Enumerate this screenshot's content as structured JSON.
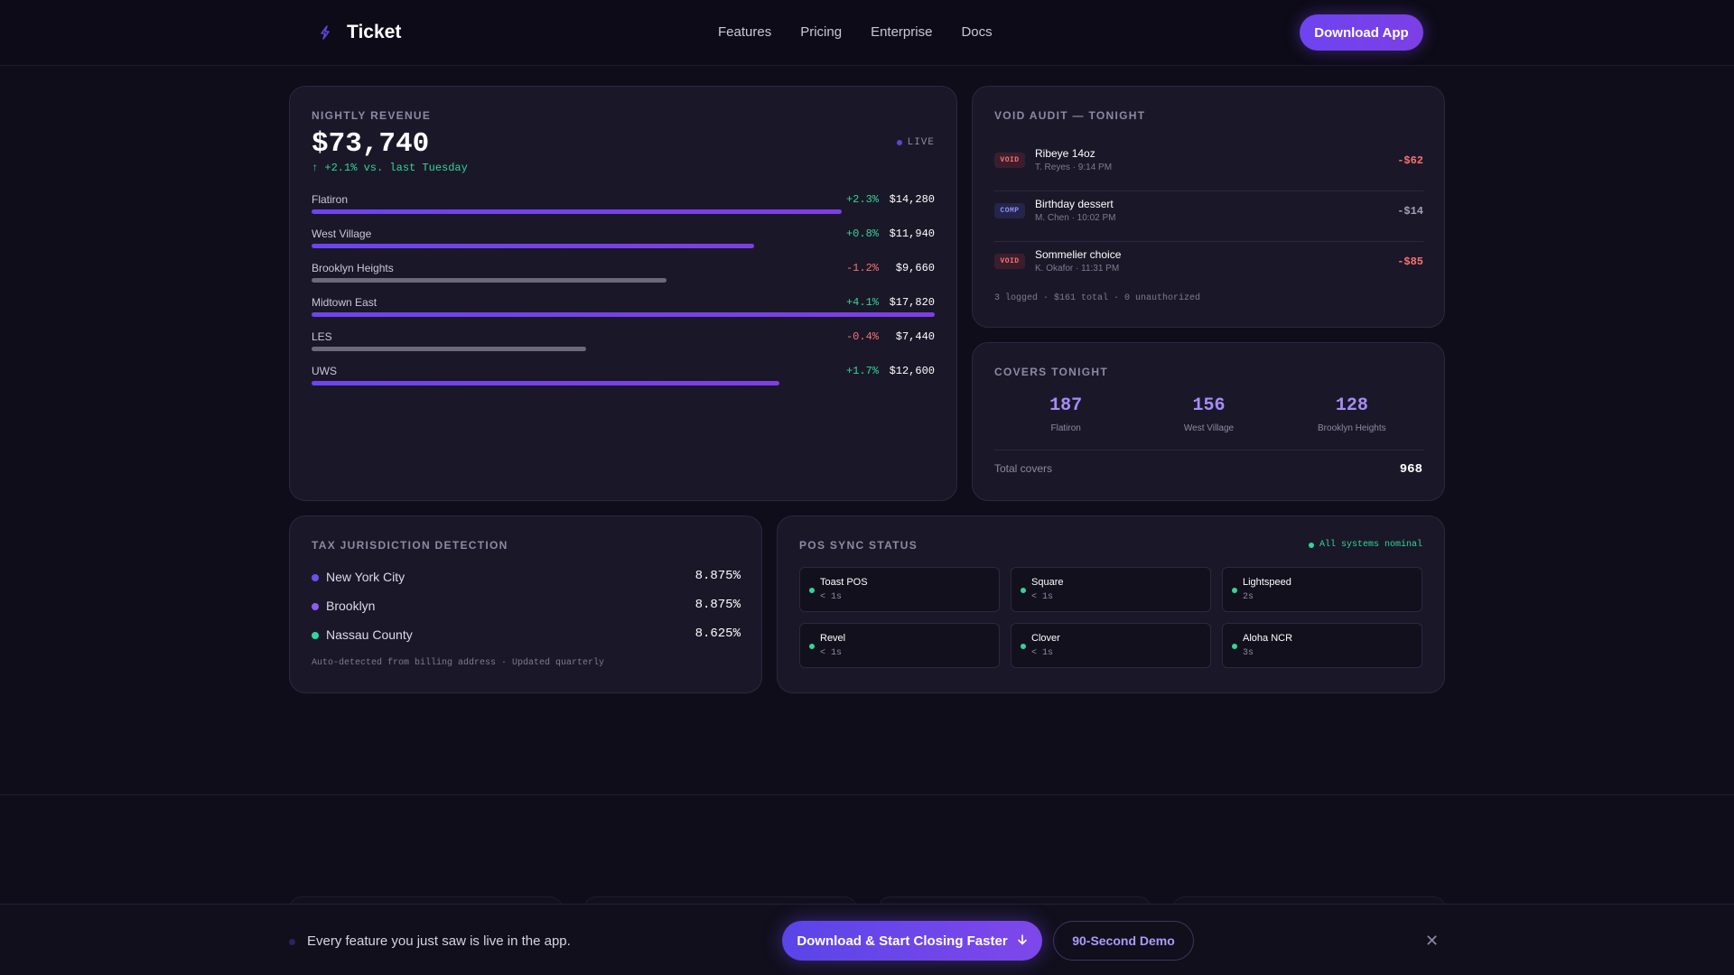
{
  "nav": {
    "brand": "Ticket",
    "links": [
      "Features",
      "Pricing",
      "Enterprise",
      "Docs"
    ],
    "cta": "Download App"
  },
  "revenue": {
    "title": "NIGHTLY REVENUE",
    "total": "$73,740",
    "change": "↑ +2.1% vs. last Tuesday",
    "live_label": "LIVE",
    "rows": [
      {
        "name": "Flatiron",
        "delta": "+2.3%",
        "value": "$14,280",
        "level": 0.85,
        "trend": "up"
      },
      {
        "name": "West Village",
        "delta": "+0.8%",
        "value": "$11,940",
        "level": 0.71,
        "trend": "up"
      },
      {
        "name": "Brooklyn Heights",
        "delta": "-1.2%",
        "value": "$9,660",
        "level": 0.57,
        "trend": "down"
      },
      {
        "name": "Midtown East",
        "delta": "+4.1%",
        "value": "$17,820",
        "level": 1.0,
        "trend": "up"
      },
      {
        "name": "LES",
        "delta": "-0.4%",
        "value": "$7,440",
        "level": 0.44,
        "trend": "down"
      },
      {
        "name": "UWS",
        "delta": "+1.7%",
        "value": "$12,600",
        "level": 0.75,
        "trend": "up"
      }
    ]
  },
  "void_audit": {
    "title": "VOID AUDIT — TONIGHT",
    "items": [
      {
        "tag": "VOID",
        "name": "Ribeye 14oz",
        "meta": "T. Reyes · 9:14 PM",
        "amount": "-$62"
      },
      {
        "tag": "COMP",
        "name": "Birthday dessert",
        "meta": "M. Chen · 10:02 PM",
        "amount": "-$14"
      },
      {
        "tag": "VOID",
        "name": "Sommelier choice",
        "meta": "K. Okafor · 11:31 PM",
        "amount": "-$85"
      }
    ],
    "summary": "3 logged · $161 total · 0 unauthorized"
  },
  "covers": {
    "title": "COVERS TONIGHT",
    "items": [
      {
        "value": "187",
        "label": "Flatiron"
      },
      {
        "value": "156",
        "label": "West Village"
      },
      {
        "value": "128",
        "label": "Brooklyn Heights"
      }
    ],
    "total_label": "Total covers",
    "total": "968"
  },
  "tax": {
    "title": "TAX JURISDICTION DETECTION",
    "items": [
      {
        "name": "New York City",
        "rate": "8.875%",
        "color": "#6d4ff0"
      },
      {
        "name": "Brooklyn",
        "rate": "8.875%",
        "color": "#8b5cf6"
      },
      {
        "name": "Nassau County",
        "rate": "8.625%",
        "color": "#34d399"
      }
    ],
    "note": "Auto-detected from billing address · Updated quarterly"
  },
  "pos": {
    "title": "POS SYNC STATUS",
    "status": "All systems nominal",
    "systems": [
      {
        "name": "Toast POS",
        "latency": "< 1s"
      },
      {
        "name": "Square",
        "latency": "< 1s"
      },
      {
        "name": "Lightspeed",
        "latency": "2s"
      },
      {
        "name": "Revel",
        "latency": "< 1s"
      },
      {
        "name": "Clover",
        "latency": "< 1s"
      },
      {
        "name": "Aloha NCR",
        "latency": "3s"
      }
    ]
  },
  "bottom_bar": {
    "text": "Every feature you just saw is live in the app.",
    "cta": "Download & Start Closing Faster",
    "secondary": "90-Second Demo",
    "close_icon": "close-icon"
  },
  "colors": {
    "accent": "#6d44f0",
    "positive": "#34d399",
    "negative": "#f87171",
    "bar_up": "#6d44f0",
    "bar_down": "#6b6a7a"
  }
}
